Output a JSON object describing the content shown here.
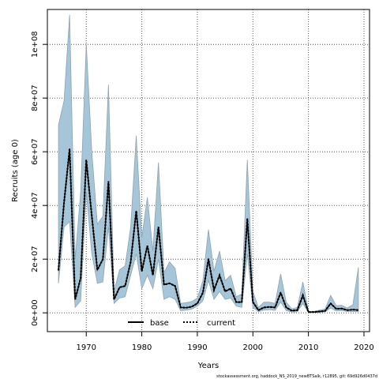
{
  "chart_data": {
    "type": "line",
    "ylabel": "Recruits (age 0)",
    "xlabel": "Years",
    "xlim": [
      1963,
      2021
    ],
    "ylim": [
      -7000000,
      113000000
    ],
    "x_ticks": [
      1970,
      1980,
      1990,
      2000,
      2010,
      2020
    ],
    "y_ticks": [
      0,
      20000000,
      40000000,
      60000000,
      80000000,
      100000000
    ],
    "y_tick_labels": [
      "0e+00",
      "2e+07",
      "4e+07",
      "6e+07",
      "8e+07",
      "1e+08"
    ],
    "grid": true,
    "legend_position": "bottom-center",
    "footnote": "stockassessment.org, haddock_NS_2019_newBTSalk, r12895, git: 69d926d0437d",
    "band_color": "#a5c6d8",
    "band_edge_color": "#8fa3b0",
    "x": [
      1965,
      1966,
      1967,
      1968,
      1969,
      1970,
      1971,
      1972,
      1973,
      1974,
      1975,
      1976,
      1977,
      1978,
      1979,
      1980,
      1981,
      1982,
      1983,
      1984,
      1985,
      1986,
      1987,
      1988,
      1989,
      1990,
      1991,
      1992,
      1993,
      1994,
      1995,
      1996,
      1997,
      1998,
      1999,
      2000,
      2001,
      2002,
      2003,
      2004,
      2005,
      2006,
      2007,
      2008,
      2009,
      2010,
      2011,
      2012,
      2013,
      2014,
      2015,
      2016,
      2017,
      2018,
      2019
    ],
    "series": [
      {
        "name": "base",
        "style": "solid",
        "color": "#000000",
        "values": [
          16000000,
          41000000,
          61000000,
          5000000,
          13000000,
          57000000,
          36000000,
          16000000,
          20000000,
          49000000,
          5000000,
          9500000,
          10000000,
          19000000,
          38000000,
          15500000,
          25000000,
          14000000,
          32000000,
          10500000,
          11000000,
          10000000,
          2000000,
          1900000,
          2300000,
          3500000,
          7500000,
          20000000,
          8500000,
          14000000,
          8000000,
          9000000,
          4000000,
          4000000,
          35000000,
          4000000,
          1000000,
          2000000,
          2200000,
          2000000,
          7500000,
          2000000,
          800000,
          1000000,
          6500000,
          300000,
          300000,
          500000,
          700000,
          3500000,
          1500000,
          1600000,
          1000000,
          1200000,
          1000000
        ],
        "lower": [
          11000000,
          32000000,
          34000000,
          2000000,
          4500000,
          45000000,
          22000000,
          11000000,
          11500000,
          32000000,
          3500000,
          5500000,
          6000000,
          14000000,
          22000000,
          9000000,
          14000000,
          9000000,
          20000000,
          5000000,
          6000000,
          5000000,
          800000,
          1000000,
          1400000,
          2500000,
          4500000,
          12000000,
          5000000,
          8000000,
          5000000,
          5500000,
          2500000,
          2000000,
          22000000,
          2000000,
          400000,
          1000000,
          1200000,
          900000,
          4000000,
          900000,
          300000,
          400000,
          3500000,
          100000,
          150000,
          250000,
          350000,
          1800000,
          700000,
          800000,
          500000,
          500000,
          400000
        ],
        "upper": [
          70000000,
          79000000,
          111000000,
          20000000,
          45000000,
          100000000,
          60000000,
          33000000,
          36000000,
          85000000,
          8000000,
          16000000,
          17500000,
          32000000,
          66000000,
          28000000,
          43000000,
          23000000,
          56000000,
          15000000,
          19000000,
          16500000,
          3500000,
          3800000,
          4200000,
          5500000,
          12000000,
          31000000,
          15500000,
          23000000,
          12000000,
          14000000,
          6000000,
          7000000,
          57000000,
          8000000,
          2000000,
          4000000,
          4000000,
          3500000,
          14500000,
          4000000,
          1500000,
          2000000,
          11500000,
          600000,
          550000,
          1000000,
          1400000,
          6500000,
          2700000,
          2800000,
          1800000,
          3000000,
          17000000
        ]
      },
      {
        "name": "current",
        "style": "dotted",
        "color": "#000000",
        "values": [
          16000000,
          41000000,
          61000000,
          5000000,
          13000000,
          57000000,
          36000000,
          16000000,
          20000000,
          49000000,
          5000000,
          9500000,
          10000000,
          19000000,
          38000000,
          15500000,
          25000000,
          14000000,
          32000000,
          10500000,
          11000000,
          10000000,
          2000000,
          1900000,
          2300000,
          3500000,
          7500000,
          20000000,
          8500000,
          14000000,
          8000000,
          9000000,
          4000000,
          4000000,
          35000000,
          4000000,
          1000000,
          2000000,
          2200000,
          2000000,
          7500000,
          2000000,
          800000,
          1000000,
          6500000,
          300000,
          300000,
          500000,
          700000,
          3500000,
          1500000,
          1600000,
          1000000,
          1200000,
          1000000
        ]
      }
    ]
  }
}
